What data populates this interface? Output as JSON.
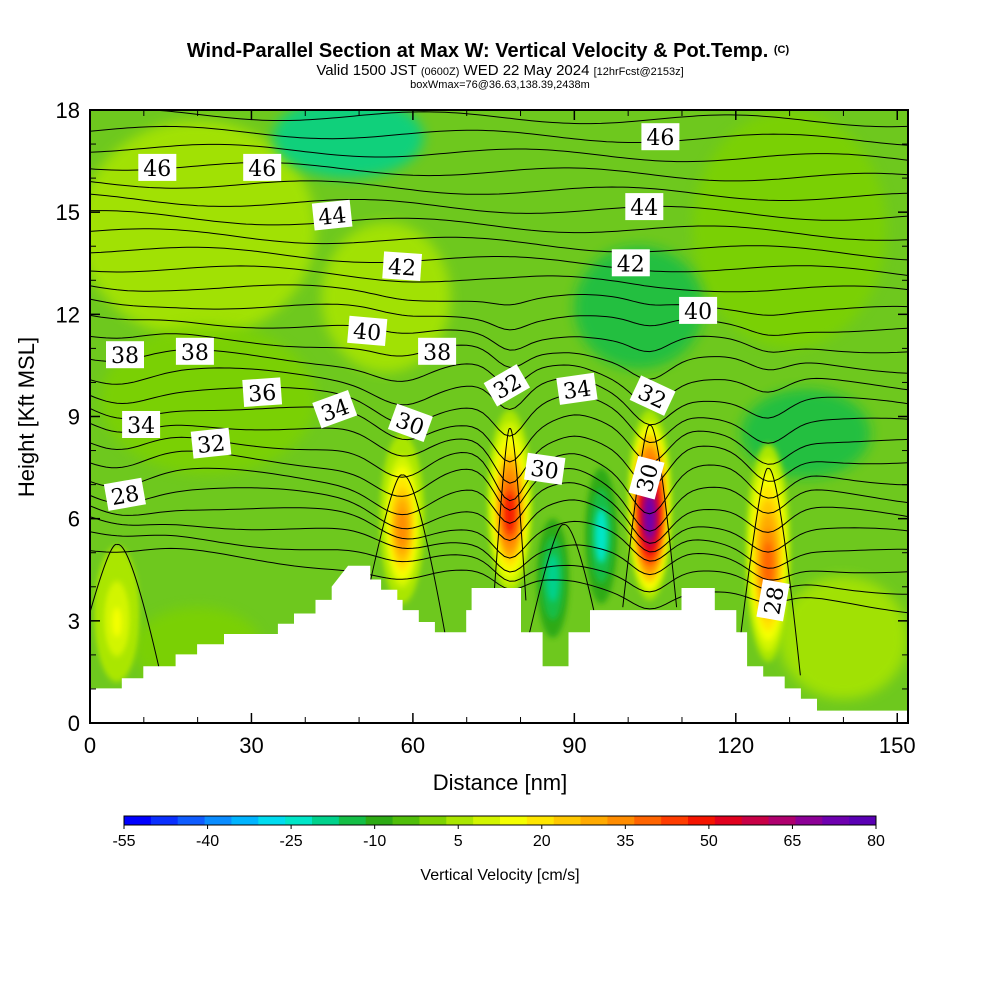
{
  "title": {
    "main": "Wind-Parallel Section at Max W: Vertical Velocity & Pot.Temp.",
    "copyright": "(C)",
    "valid_prefix": "Valid 1500 JST",
    "valid_utc": "(0600Z)",
    "valid_date": "WED 22 May 2024",
    "forecast": "[12hrFcst@2153z]",
    "box_info": "boxWmax=76@36.63,138.39,2438m"
  },
  "chart_data": {
    "type": "heatmap",
    "xlabel": "Distance [nm]",
    "ylabel": "Height [Kft MSL]",
    "xlim": [
      0,
      152
    ],
    "ylim": [
      0,
      18
    ],
    "x_ticks": [
      "0",
      "30",
      "60",
      "90",
      "120",
      "150"
    ],
    "y_ticks": [
      "0",
      "3",
      "6",
      "9",
      "12",
      "15",
      "18"
    ],
    "colorbar": {
      "title": "Vertical Velocity [cm/s]",
      "levels": [
        -55,
        -50,
        -45,
        -40,
        -35,
        -30,
        -25,
        -20,
        -15,
        -10,
        -5,
        0,
        5,
        10,
        15,
        20,
        25,
        30,
        35,
        40,
        45,
        50,
        55,
        60,
        65,
        70,
        75,
        80
      ],
      "tick_labels": [
        "-55",
        "-40",
        "-25",
        "-10",
        "5",
        "20",
        "35",
        "50",
        "65",
        "80"
      ],
      "colors": [
        "#0000ff",
        "#0a2fff",
        "#0f5cff",
        "#0a8cff",
        "#00b4ff",
        "#00dcf0",
        "#00e6c8",
        "#00d28c",
        "#14be46",
        "#2daa14",
        "#50be0a",
        "#7dd200",
        "#aae600",
        "#d2f500",
        "#f5ff00",
        "#ffe600",
        "#ffc800",
        "#ffaa00",
        "#ff8c00",
        "#ff6400",
        "#ff3c00",
        "#f51400",
        "#e1001e",
        "#c80046",
        "#af006e",
        "#8c0096",
        "#6e00af",
        "#5a00b4"
      ]
    },
    "updrafts": [
      {
        "x": 5,
        "y_bottom": 1.2,
        "y_top": 5.2,
        "w_max": 15
      },
      {
        "x": 58,
        "y_bottom": 3.5,
        "y_top": 8.5,
        "w_max": 35
      },
      {
        "x": 78,
        "y_bottom": 3.8,
        "y_top": 9.2,
        "w_max": 50
      },
      {
        "x": 104,
        "y_bottom": 3.6,
        "y_top": 9.2,
        "w_max": 76
      },
      {
        "x": 126,
        "y_bottom": 1.8,
        "y_top": 8.2,
        "w_max": 40
      }
    ],
    "downdrafts": [
      {
        "x": 95,
        "y_bottom": 3.5,
        "y_top": 7.5,
        "w_min": -25
      },
      {
        "x": 86,
        "y_bottom": 2.5,
        "y_top": 6.0,
        "w_min": -20
      }
    ],
    "terrain": [
      [
        0,
        1.0
      ],
      [
        6,
        1.0
      ],
      [
        6,
        1.3
      ],
      [
        10,
        1.3
      ],
      [
        10,
        1.65
      ],
      [
        16,
        1.65
      ],
      [
        16,
        2.0
      ],
      [
        20,
        2.0
      ],
      [
        20,
        2.3
      ],
      [
        25,
        2.3
      ],
      [
        25,
        2.6
      ],
      [
        30,
        2.6
      ],
      [
        30,
        2.6
      ],
      [
        35,
        2.6
      ],
      [
        35,
        2.9
      ],
      [
        38,
        2.9
      ],
      [
        38,
        3.2
      ],
      [
        42,
        3.2
      ],
      [
        42,
        3.6
      ],
      [
        45,
        3.6
      ],
      [
        45,
        4.0
      ],
      [
        48,
        4.6
      ],
      [
        52,
        4.6
      ],
      [
        52,
        4.2
      ],
      [
        54,
        4.2
      ],
      [
        54,
        3.9
      ],
      [
        57,
        3.9
      ],
      [
        57,
        3.6
      ],
      [
        58,
        3.6
      ],
      [
        58,
        3.3
      ],
      [
        61,
        3.3
      ],
      [
        61,
        2.95
      ],
      [
        64,
        2.95
      ],
      [
        64,
        2.65
      ],
      [
        70,
        2.65
      ],
      [
        70,
        3.3
      ],
      [
        71,
        3.3
      ],
      [
        71,
        3.95
      ],
      [
        80,
        3.95
      ],
      [
        80,
        2.65
      ],
      [
        84,
        2.65
      ],
      [
        84,
        1.65
      ],
      [
        89,
        1.65
      ],
      [
        89,
        2.65
      ],
      [
        93,
        2.65
      ],
      [
        93,
        3.3
      ],
      [
        110,
        3.3
      ],
      [
        110,
        3.95
      ],
      [
        116,
        3.95
      ],
      [
        116,
        3.3
      ],
      [
        120,
        3.3
      ],
      [
        120,
        2.65
      ],
      [
        122,
        2.65
      ],
      [
        122,
        1.65
      ],
      [
        125,
        1.65
      ],
      [
        125,
        1.35
      ],
      [
        129,
        1.35
      ],
      [
        129,
        1.0
      ],
      [
        132,
        1.0
      ],
      [
        132,
        0.7
      ],
      [
        135,
        0.7
      ],
      [
        135,
        0.35
      ],
      [
        152,
        0.35
      ]
    ],
    "isentrope_labels": [
      {
        "text": "46",
        "x": 12.5,
        "y": 16.3,
        "angle": 0
      },
      {
        "text": "46",
        "x": 32,
        "y": 16.3,
        "angle": 0
      },
      {
        "text": "46",
        "x": 106,
        "y": 17.2,
        "angle": 0
      },
      {
        "text": "44",
        "x": 45,
        "y": 14.9,
        "angle": -6
      },
      {
        "text": "44",
        "x": 103,
        "y": 15.15,
        "angle": 0
      },
      {
        "text": "42",
        "x": 58,
        "y": 13.4,
        "angle": 4
      },
      {
        "text": "42",
        "x": 100.5,
        "y": 13.5,
        "angle": 0
      },
      {
        "text": "40",
        "x": 51.5,
        "y": 11.5,
        "angle": 5
      },
      {
        "text": "40",
        "x": 113,
        "y": 12.1,
        "angle": 0
      },
      {
        "text": "38",
        "x": 6.5,
        "y": 10.8,
        "angle": 0
      },
      {
        "text": "38",
        "x": 19.5,
        "y": 10.9,
        "angle": 0
      },
      {
        "text": "38",
        "x": 64.5,
        "y": 10.9,
        "angle": 0
      },
      {
        "text": "36",
        "x": 32,
        "y": 9.7,
        "angle": -4
      },
      {
        "text": "34",
        "x": 45.5,
        "y": 9.2,
        "angle": -20
      },
      {
        "text": "34",
        "x": 9.5,
        "y": 8.75,
        "angle": 0
      },
      {
        "text": "34",
        "x": 90.5,
        "y": 9.8,
        "angle": -8
      },
      {
        "text": "32",
        "x": 22.5,
        "y": 8.2,
        "angle": -6
      },
      {
        "text": "32",
        "x": 77.5,
        "y": 9.9,
        "angle": -30
      },
      {
        "text": "32",
        "x": 104.5,
        "y": 9.6,
        "angle": 25
      },
      {
        "text": "30",
        "x": 59.5,
        "y": 8.8,
        "angle": 20
      },
      {
        "text": "30",
        "x": 84.5,
        "y": 7.45,
        "angle": 8
      },
      {
        "text": "30",
        "x": 103.5,
        "y": 7.2,
        "angle": -75
      },
      {
        "text": "28",
        "x": 6.5,
        "y": 6.7,
        "angle": -10
      },
      {
        "text": "28",
        "x": 127,
        "y": 3.6,
        "angle": -80
      }
    ]
  }
}
